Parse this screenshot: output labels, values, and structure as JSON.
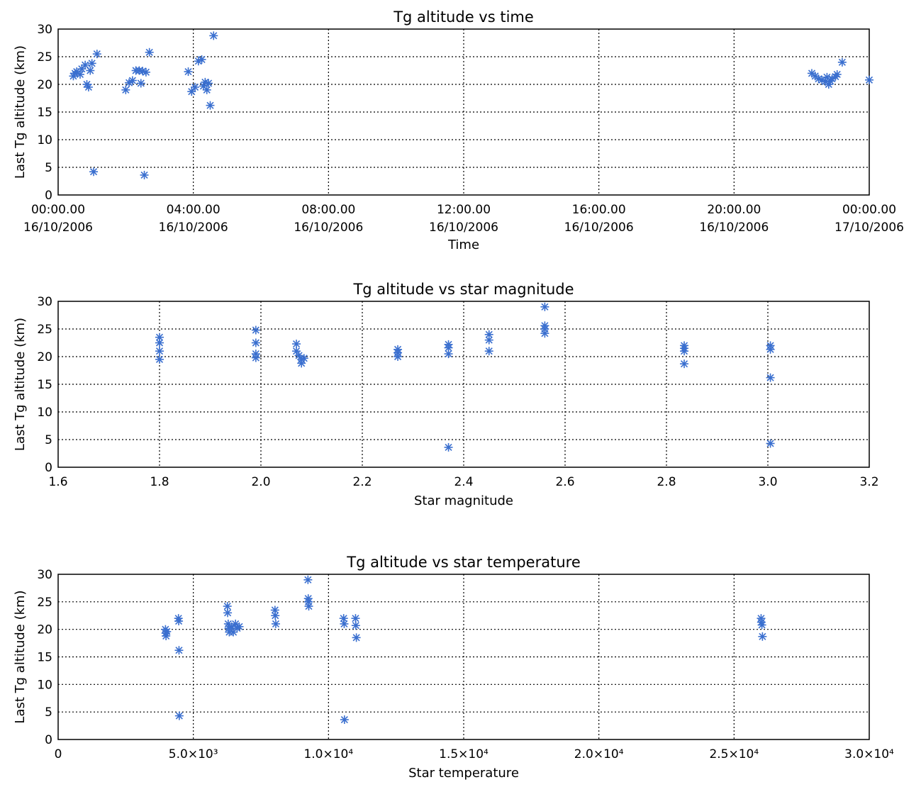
{
  "chart_data": [
    {
      "type": "scatter",
      "title": "Tg altitude vs time",
      "xlabel": "Time",
      "ylabel": "Last Tg altitude (km)",
      "x_unit": "hours since 00:00.00 16/10/2006",
      "xlim": [
        0,
        24
      ],
      "ylim": [
        0,
        30
      ],
      "yticks": [
        "0",
        "5",
        "10",
        "15",
        "20",
        "25",
        "30"
      ],
      "xticks": [
        {
          "v": 0,
          "l1": "00:00.00",
          "l2": "16/10/2006"
        },
        {
          "v": 4,
          "l1": "04:00.00",
          "l2": "16/10/2006"
        },
        {
          "v": 8,
          "l1": "08:00.00",
          "l2": "16/10/2006"
        },
        {
          "v": 12,
          "l1": "12:00.00",
          "l2": "16/10/2006"
        },
        {
          "v": 16,
          "l1": "16:00.00",
          "l2": "16/10/2006"
        },
        {
          "v": 20,
          "l1": "20:00.00",
          "l2": "16/10/2006"
        },
        {
          "v": 24,
          "l1": "00:00.00",
          "l2": "17/10/2006"
        }
      ],
      "grid": true,
      "marker_color": "#3a6fcf",
      "points": [
        [
          0.45,
          21.5
        ],
        [
          0.5,
          22
        ],
        [
          0.55,
          22.3
        ],
        [
          0.65,
          21.8
        ],
        [
          0.7,
          22.8
        ],
        [
          0.8,
          23.5
        ],
        [
          0.85,
          20
        ],
        [
          0.9,
          19.5
        ],
        [
          0.95,
          22.5
        ],
        [
          1.0,
          23.8
        ],
        [
          1.05,
          4.2
        ],
        [
          1.15,
          25.5
        ],
        [
          2.0,
          19
        ],
        [
          2.1,
          20.3
        ],
        [
          2.2,
          20.7
        ],
        [
          2.3,
          22.5
        ],
        [
          2.4,
          22.5
        ],
        [
          2.45,
          20.2
        ],
        [
          2.5,
          22.4
        ],
        [
          2.55,
          3.6
        ],
        [
          2.6,
          22.2
        ],
        [
          2.7,
          25.8
        ],
        [
          3.85,
          22.3
        ],
        [
          3.95,
          18.7
        ],
        [
          4.05,
          19.5
        ],
        [
          4.15,
          24.2
        ],
        [
          4.25,
          24.5
        ],
        [
          4.3,
          19.7
        ],
        [
          4.35,
          20.4
        ],
        [
          4.4,
          19
        ],
        [
          4.45,
          20.2
        ],
        [
          4.5,
          16.2
        ],
        [
          4.6,
          28.8
        ],
        [
          22.3,
          22
        ],
        [
          22.4,
          21.5
        ],
        [
          22.5,
          21
        ],
        [
          22.6,
          20.8
        ],
        [
          22.7,
          20.5
        ],
        [
          22.75,
          21.3
        ],
        [
          22.8,
          20
        ],
        [
          22.85,
          20.6
        ],
        [
          22.9,
          21
        ],
        [
          23.0,
          21.4
        ],
        [
          23.05,
          21.8
        ],
        [
          23.2,
          24
        ],
        [
          24.0,
          20.8
        ]
      ]
    },
    {
      "type": "scatter",
      "title": "Tg altitude vs star magnitude",
      "xlabel": "Star magnitude",
      "ylabel": "Last Tg altitude (km)",
      "xlim": [
        1.6,
        3.2
      ],
      "ylim": [
        0,
        30
      ],
      "yticks": [
        "0",
        "5",
        "10",
        "15",
        "20",
        "25",
        "30"
      ],
      "xticks": [
        {
          "v": 1.6,
          "l1": "1.6"
        },
        {
          "v": 1.8,
          "l1": "1.8"
        },
        {
          "v": 2.0,
          "l1": "2.0"
        },
        {
          "v": 2.2,
          "l1": "2.2"
        },
        {
          "v": 2.4,
          "l1": "2.4"
        },
        {
          "v": 2.6,
          "l1": "2.6"
        },
        {
          "v": 2.8,
          "l1": "2.8"
        },
        {
          "v": 3.0,
          "l1": "3.0"
        },
        {
          "v": 3.2,
          "l1": "3.2"
        }
      ],
      "grid": true,
      "marker_color": "#3a6fcf",
      "points": [
        [
          1.8,
          23.5
        ],
        [
          1.8,
          22.5
        ],
        [
          1.8,
          21
        ],
        [
          1.8,
          19.5
        ],
        [
          1.99,
          24.8
        ],
        [
          1.99,
          22.5
        ],
        [
          1.99,
          20.5
        ],
        [
          1.99,
          19.8
        ],
        [
          2.07,
          22.3
        ],
        [
          2.07,
          21
        ],
        [
          2.075,
          20.2
        ],
        [
          2.08,
          19.5
        ],
        [
          2.08,
          18.8
        ],
        [
          2.085,
          19.7
        ],
        [
          2.27,
          21.3
        ],
        [
          2.27,
          20.7
        ],
        [
          2.27,
          20
        ],
        [
          2.37,
          22.2
        ],
        [
          2.37,
          21.6
        ],
        [
          2.37,
          20.5
        ],
        [
          2.37,
          3.6
        ],
        [
          2.45,
          24
        ],
        [
          2.45,
          23
        ],
        [
          2.45,
          21
        ],
        [
          2.56,
          29
        ],
        [
          2.56,
          25.6
        ],
        [
          2.56,
          25
        ],
        [
          2.56,
          24.2
        ],
        [
          2.835,
          22
        ],
        [
          2.835,
          21.5
        ],
        [
          2.835,
          21
        ],
        [
          2.835,
          18.7
        ],
        [
          3.005,
          22
        ],
        [
          3.005,
          21.3
        ],
        [
          3.005,
          16.2
        ],
        [
          3.005,
          4.3
        ]
      ]
    },
    {
      "type": "scatter",
      "title": "Tg altitude vs star temperature",
      "xlabel": "Star temperature",
      "ylabel": "Last Tg altitude (km)",
      "xlim": [
        0,
        30000
      ],
      "ylim": [
        0,
        30
      ],
      "yticks": [
        "0",
        "5",
        "10",
        "15",
        "20",
        "25",
        "30"
      ],
      "xticks": [
        {
          "v": 0,
          "l1": "0"
        },
        {
          "v": 5000,
          "l1": "5.0×10³"
        },
        {
          "v": 10000,
          "l1": "1.0×10⁴"
        },
        {
          "v": 15000,
          "l1": "1.5×10⁴"
        },
        {
          "v": 20000,
          "l1": "2.0×10⁴"
        },
        {
          "v": 25000,
          "l1": "2.5×10⁴"
        },
        {
          "v": 30000,
          "l1": "3.0×10⁴"
        }
      ],
      "grid": true,
      "marker_color": "#3a6fcf",
      "points": [
        [
          3970,
          20
        ],
        [
          3980,
          19.3
        ],
        [
          3990,
          18.8
        ],
        [
          4020,
          19.6
        ],
        [
          4450,
          22
        ],
        [
          4460,
          21.5
        ],
        [
          4470,
          16.2
        ],
        [
          4480,
          4.3
        ],
        [
          6260,
          24.2
        ],
        [
          6270,
          23
        ],
        [
          6290,
          21
        ],
        [
          6310,
          20.2
        ],
        [
          6330,
          19.5
        ],
        [
          6420,
          20.5
        ],
        [
          6480,
          19.5
        ],
        [
          6560,
          21
        ],
        [
          6620,
          20.2
        ],
        [
          6700,
          20.5
        ],
        [
          8020,
          23.5
        ],
        [
          8030,
          22.5
        ],
        [
          8050,
          21
        ],
        [
          9240,
          29
        ],
        [
          9250,
          25.6
        ],
        [
          9260,
          25
        ],
        [
          9270,
          24.2
        ],
        [
          10560,
          22
        ],
        [
          10580,
          21
        ],
        [
          10590,
          3.6
        ],
        [
          11000,
          22
        ],
        [
          11010,
          20.7
        ],
        [
          11030,
          18.5
        ],
        [
          26000,
          22
        ],
        [
          26010,
          21.3
        ],
        [
          26030,
          20.8
        ],
        [
          26050,
          18.7
        ]
      ]
    }
  ]
}
